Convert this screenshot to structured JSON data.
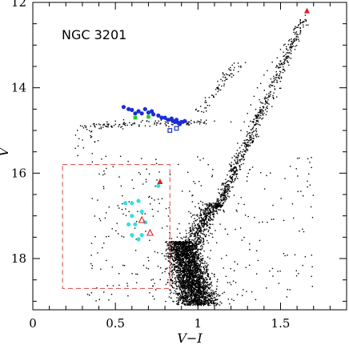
{
  "chart_data": {
    "type": "scatter",
    "title": "NGC 3201",
    "xlabel": "V−I",
    "ylabel": "V",
    "xlim": [
      0,
      1.9
    ],
    "ylim": [
      19.2,
      12
    ],
    "y_inverted": true,
    "x_ticks": [
      "0",
      "0.5",
      "1",
      "1.5"
    ],
    "x_tick_values": [
      0,
      0.5,
      1,
      1.5
    ],
    "y_ticks": [
      "12",
      "14",
      "16",
      "18"
    ],
    "y_tick_values": [
      12,
      14,
      16,
      18
    ],
    "grid": false,
    "colors": {
      "field": "#000000",
      "horizontal_branch_blue": "#1a2ed6",
      "horizontal_branch_green": "#22cc22",
      "blue_stragglers": "#33e0e0",
      "variables": "#e02020",
      "selection_box": "#e04040"
    },
    "selection_box": {
      "x": [
        0.18,
        0.83
      ],
      "y": [
        15.8,
        18.7
      ]
    },
    "series": [
      {
        "marker": "dot",
        "color": "#000000",
        "description_visible": false,
        "x": [
          1.65,
          1.62,
          1.58,
          1.55,
          1.52,
          1.5,
          1.48,
          1.45,
          1.42,
          1.4,
          1.38,
          1.36,
          1.34,
          1.32,
          1.3,
          1.28,
          1.26,
          1.24,
          1.22,
          1.2,
          0.3,
          0.35,
          0.4,
          0.45,
          0.5,
          0.55,
          0.95,
          1.0,
          1.05,
          1.1,
          1.2
        ],
        "y": [
          12.3,
          12.5,
          12.7,
          12.9,
          13.0,
          13.1,
          13.3,
          13.4,
          13.6,
          13.7,
          13.9,
          14.0,
          14.2,
          14.4,
          14.6,
          14.8,
          15.0,
          15.3,
          15.6,
          15.9,
          14.9,
          14.9,
          14.85,
          14.8,
          14.78,
          14.75,
          14.8,
          14.78,
          14.76,
          14.78,
          14.8
        ]
      },
      {
        "marker": "filled-circle",
        "color": "#1a2ed6",
        "x": [
          0.55,
          0.58,
          0.6,
          0.64,
          0.66,
          0.68,
          0.7,
          0.73,
          0.76,
          0.78,
          0.8,
          0.82,
          0.84,
          0.85,
          0.86,
          0.87,
          0.88,
          0.89,
          0.9,
          0.92,
          0.62,
          0.72
        ],
        "y": [
          14.45,
          14.5,
          14.52,
          14.55,
          14.6,
          14.5,
          14.58,
          14.62,
          14.65,
          14.7,
          14.7,
          14.75,
          14.72,
          14.78,
          14.8,
          14.75,
          14.82,
          14.85,
          14.8,
          14.78,
          14.6,
          14.55
        ]
      },
      {
        "marker": "filled-square",
        "color": "#22cc22",
        "x": [
          0.62,
          0.7
        ],
        "y": [
          14.7,
          14.68
        ]
      },
      {
        "marker": "open-square",
        "color": "#1a2ed6",
        "x": [
          0.83,
          0.87
        ],
        "y": [
          15.0,
          14.95
        ]
      },
      {
        "marker": "filled-circle",
        "color": "#33e0e0",
        "x": [
          0.56,
          0.6,
          0.64,
          0.6,
          0.66,
          0.58,
          0.62,
          0.68,
          0.6,
          0.66,
          0.64,
          0.76
        ],
        "y": [
          16.7,
          16.7,
          16.65,
          17.0,
          16.9,
          17.2,
          17.2,
          17.15,
          17.45,
          17.45,
          17.55,
          16.3
        ]
      },
      {
        "marker": "filled-triangle",
        "color": "#e02020",
        "x": [
          1.66,
          0.77
        ],
        "y": [
          12.2,
          16.2
        ]
      },
      {
        "marker": "open-triangle",
        "color": "#e02020",
        "x": [
          0.66,
          0.71
        ],
        "y": [
          17.1,
          17.4
        ]
      }
    ]
  }
}
